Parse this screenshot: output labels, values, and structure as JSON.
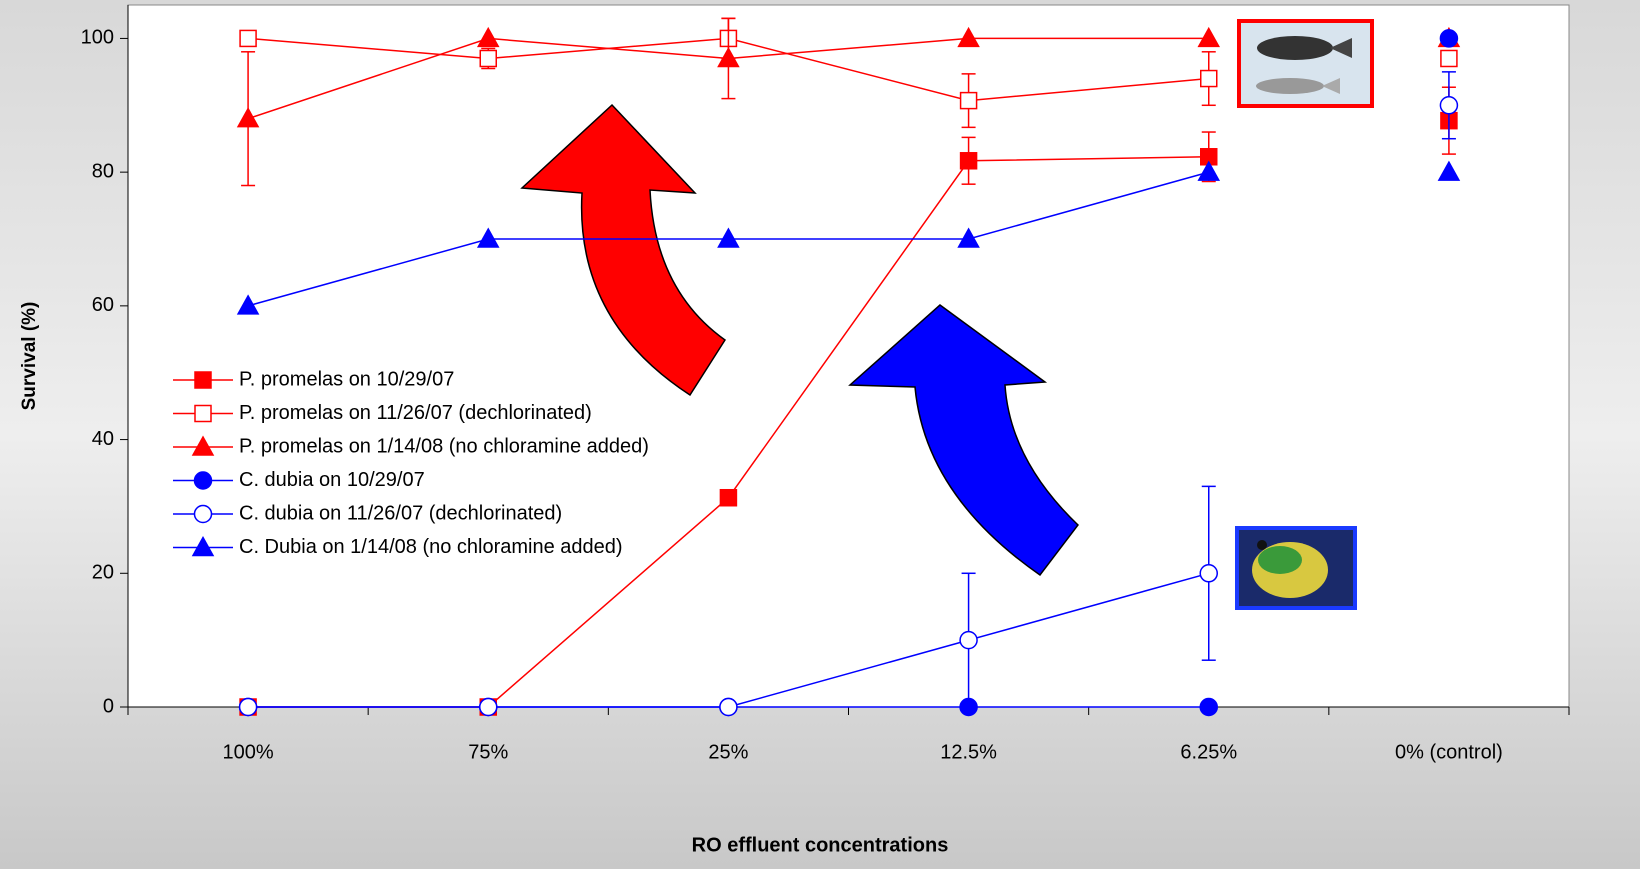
{
  "chart_data": {
    "type": "line",
    "y_label": "Survival (%)",
    "x_label": "RO effluent concentrations",
    "categories": [
      "100%",
      "75%",
      "25%",
      "12.5%",
      "6.25%",
      "0% (control)"
    ],
    "ylim": [
      0,
      105
    ],
    "yticks": [
      0,
      20,
      40,
      60,
      80,
      100
    ],
    "series": [
      {
        "name": "P. promelas on 10/29/07",
        "color": "#ff0000",
        "marker": "square",
        "filled": true,
        "values": [
          0,
          0,
          31.3,
          81.7,
          82.3,
          87.7
        ],
        "errors": [
          null,
          null,
          null,
          3.5,
          3.7,
          5
        ]
      },
      {
        "name": "P. promelas on 11/26/07 (dechlorinated)",
        "color": "#ff0000",
        "marker": "square",
        "filled": false,
        "values": [
          100,
          97,
          100,
          90.7,
          94,
          97
        ],
        "errors": [
          null,
          1.5,
          3,
          4,
          4,
          null
        ]
      },
      {
        "name": "P. promelas on 1/14/08 (no chloramine added)",
        "color": "#ff0000",
        "marker": "triangle",
        "filled": true,
        "values": [
          88,
          100,
          97,
          100,
          100,
          100
        ],
        "errors": [
          10,
          null,
          6,
          null,
          null,
          null
        ]
      },
      {
        "name": "C. dubia on 10/29/07",
        "color": "#0000ff",
        "marker": "circle",
        "filled": true,
        "values": [
          0,
          0,
          0,
          0,
          0,
          100
        ],
        "errors": [
          null,
          null,
          null,
          null,
          null,
          null
        ]
      },
      {
        "name": "C. dubia on 11/26/07 (dechlorinated)",
        "color": "#0000ff",
        "marker": "circle",
        "filled": false,
        "values": [
          0,
          0,
          0,
          10,
          20,
          90
        ],
        "errors": [
          null,
          null,
          null,
          10,
          13,
          5
        ]
      },
      {
        "name": "C. Dubia on 1/14/08 (no chloramine added)",
        "color": "#0000ff",
        "marker": "triangle",
        "filled": true,
        "values": [
          60,
          70,
          70,
          70,
          80,
          80
        ],
        "errors": [
          null,
          null,
          null,
          null,
          null,
          null
        ]
      }
    ]
  }
}
